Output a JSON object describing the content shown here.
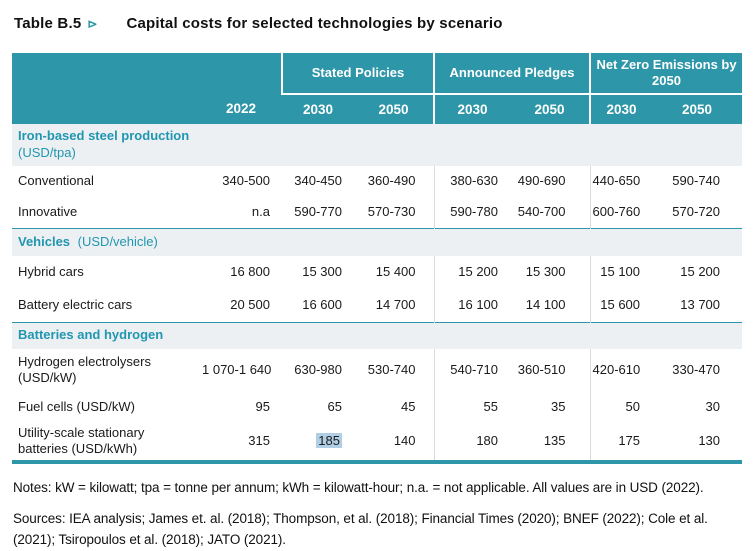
{
  "title": {
    "label": "Table B.5",
    "marker": "⊳",
    "caption": "Capital costs for selected technologies by scenario"
  },
  "table": {
    "groups": [
      "Stated Policies",
      "Announced Pledges",
      "Net Zero Emissions by 2050"
    ],
    "years": [
      "2022",
      "2030",
      "2050",
      "2030",
      "2050",
      "2030",
      "2050"
    ],
    "sections": [
      {
        "title": "Iron-based steel production",
        "unit": "(USD/tpa)",
        "rows": [
          {
            "label": "Conventional",
            "values": [
              "340-500",
              "340-450",
              "360-490",
              "380-630",
              "490-690",
              "440-650",
              "590-740"
            ]
          },
          {
            "label": "Innovative",
            "values": [
              "n.a",
              "590-770",
              "570-730",
              "590-780",
              "540-700",
              "600-760",
              "570-720"
            ]
          }
        ]
      },
      {
        "title": "Vehicles",
        "unit": "(USD/vehicle)",
        "rows": [
          {
            "label": "Hybrid cars",
            "values": [
              "16 800",
              "15 300",
              "15 400",
              "15 200",
              "15 300",
              "15 100",
              "15 200"
            ]
          },
          {
            "label": "Battery electric cars",
            "values": [
              "20 500",
              "16 600",
              "14 700",
              "16 100",
              "14 100",
              "15 600",
              "13 700"
            ]
          }
        ]
      },
      {
        "title": "Batteries and hydrogen",
        "unit": "",
        "rows": [
          {
            "label": "Hydrogen electrolysers (USD/kW)",
            "values": [
              "1 070-1 640",
              "630-980",
              "530-740",
              "540-710",
              "360-510",
              "420-610",
              "330-470"
            ]
          },
          {
            "label": "Fuel cells (USD/kW)",
            "values": [
              "95",
              "65",
              "45",
              "55",
              "35",
              "50",
              "30"
            ]
          },
          {
            "label": "Utility-scale stationary batteries (USD/kWh)",
            "values": [
              "315",
              "185",
              "140",
              "180",
              "135",
              "175",
              "130"
            ],
            "highlighted_value_index": 1
          }
        ]
      }
    ]
  },
  "notes": "Notes: kW = kilowatt; tpa = tonne per annum; kWh = kilowatt-hour; n.a. = not applicable. All values are in USD (2022).",
  "sources": "Sources: IEA analysis; James et. al. (2018); Thompson, et al. (2018); Financial Times (2020); BNEF (2022); Cole et al. (2021); Tsiropoulos et al. (2018); JATO (2021).",
  "colors": {
    "header_teal": "#2D96A8",
    "section_band": "#ECF0F3",
    "section_text": "#2196B0",
    "cell_highlight": "#B0CFE5",
    "group_separator": "#D7DBDE"
  }
}
